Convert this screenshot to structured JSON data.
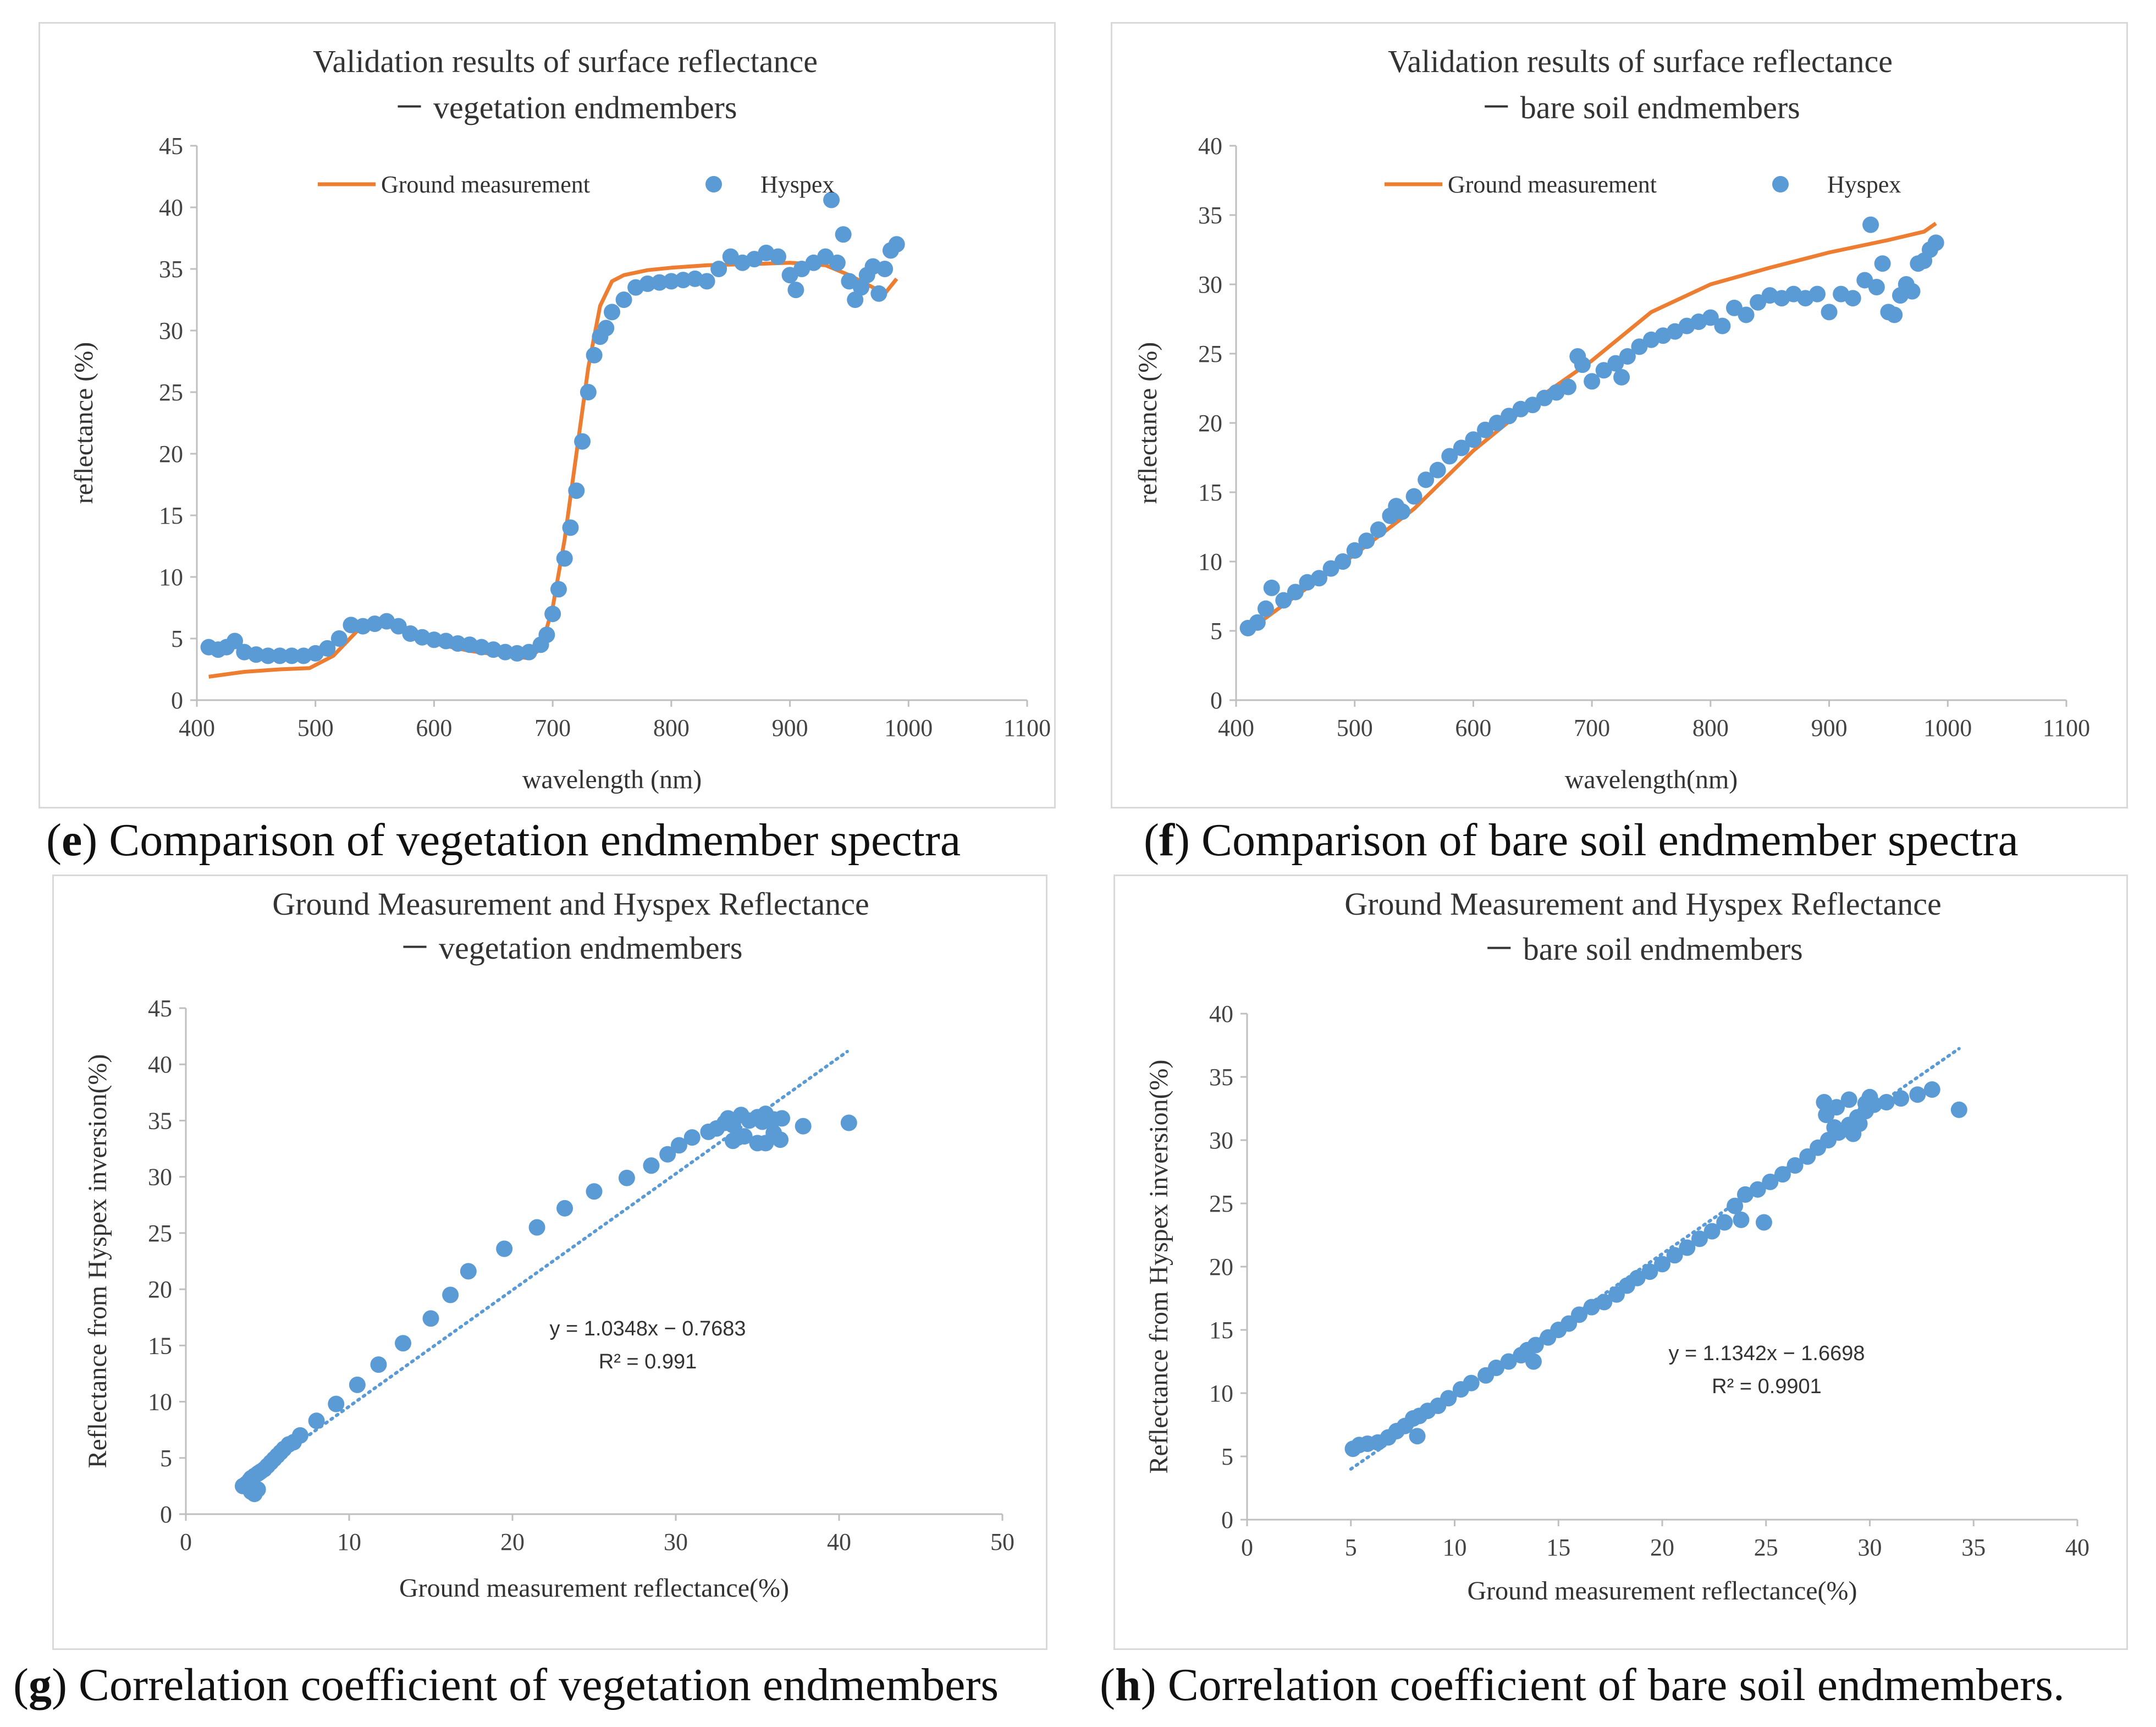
{
  "captions": {
    "e": {
      "letter": "e",
      "text": "Comparison of vegetation endmember spectra"
    },
    "f": {
      "letter": "f",
      "text": "Comparison of bare soil endmember spectra"
    },
    "g": {
      "letter": "g",
      "text": "Correlation coefficient of vegetation endmembers"
    },
    "h": {
      "letter": "h",
      "text": "Correlation coefficient of bare soil endmembers."
    }
  },
  "colors": {
    "ground": "#ed7d31",
    "hyspex": "#5b9bd5",
    "axis": "#bfbfbf"
  },
  "chart_data": [
    {
      "id": "e",
      "type": "line+scatter",
      "title": [
        "Validation results of surface reflectance",
        "－ vegetation endmembers"
      ],
      "xlabel": "wavelength (nm)",
      "ylabel": "reflectance (%)",
      "xlim": [
        400,
        1100
      ],
      "xticks": [
        400,
        500,
        600,
        700,
        800,
        900,
        1000,
        1100
      ],
      "ylim": [
        0,
        45
      ],
      "yticks": [
        0,
        5,
        10,
        15,
        20,
        25,
        30,
        35,
        40,
        45
      ],
      "legend": {
        "position": "top-center",
        "entries": [
          "Ground measurement",
          "Hyspex"
        ]
      },
      "series": [
        {
          "name": "Ground measurement",
          "kind": "line",
          "x": [
            410,
            440,
            470,
            495,
            515,
            535,
            555,
            575,
            600,
            630,
            660,
            680,
            690,
            700,
            710,
            720,
            730,
            740,
            750,
            760,
            780,
            800,
            830,
            870,
            900,
            930,
            950,
            970,
            980,
            990
          ],
          "y": [
            1.9,
            2.3,
            2.5,
            2.6,
            3.6,
            5.6,
            6.2,
            5.6,
            4.6,
            4.0,
            3.6,
            3.4,
            4.2,
            7.5,
            13.0,
            20.0,
            27.0,
            32.0,
            34.0,
            34.5,
            34.9,
            35.1,
            35.3,
            35.4,
            35.5,
            35.3,
            34.5,
            33.5,
            33.0,
            34.2
          ]
        },
        {
          "name": "Hyspex",
          "kind": "scatter",
          "x": [
            410,
            418,
            425,
            432,
            440,
            450,
            460,
            470,
            480,
            490,
            500,
            510,
            520,
            530,
            540,
            550,
            560,
            570,
            580,
            590,
            600,
            610,
            620,
            630,
            640,
            650,
            660,
            670,
            680,
            690,
            695,
            700,
            705,
            710,
            715,
            720,
            725,
            730,
            735,
            740,
            745,
            750,
            760,
            770,
            780,
            790,
            800,
            810,
            820,
            830,
            840,
            850,
            860,
            870,
            880,
            890,
            900,
            905,
            910,
            920,
            930,
            935,
            940,
            945,
            950,
            955,
            960,
            965,
            970,
            975,
            980,
            985,
            990
          ],
          "y": [
            4.3,
            4.1,
            4.3,
            4.8,
            3.9,
            3.7,
            3.6,
            3.6,
            3.6,
            3.6,
            3.8,
            4.2,
            5.0,
            6.1,
            6.0,
            6.2,
            6.4,
            6.0,
            5.4,
            5.1,
            4.9,
            4.8,
            4.6,
            4.5,
            4.3,
            4.1,
            3.9,
            3.8,
            3.9,
            4.5,
            5.3,
            7.0,
            9.0,
            11.5,
            14.0,
            17.0,
            21.0,
            25.0,
            28.0,
            29.5,
            30.2,
            31.5,
            32.5,
            33.5,
            33.8,
            33.9,
            34.0,
            34.1,
            34.2,
            34.0,
            35.0,
            36.0,
            35.5,
            35.8,
            36.3,
            36.0,
            34.5,
            33.3,
            35.0,
            35.5,
            36.0,
            40.6,
            35.5,
            37.8,
            34.0,
            32.5,
            33.5,
            34.5,
            35.2,
            33.0,
            35.0,
            36.5,
            37.0
          ]
        }
      ]
    },
    {
      "id": "f",
      "type": "line+scatter",
      "title": [
        "Validation results of surface reflectance",
        "－ bare soil endmembers"
      ],
      "xlabel": "wavelength(nm)",
      "ylabel": "reflectance (%)",
      "xlim": [
        400,
        1100
      ],
      "xticks": [
        400,
        500,
        600,
        700,
        800,
        900,
        1000,
        1100
      ],
      "ylim": [
        0,
        40
      ],
      "yticks": [
        0,
        5,
        10,
        15,
        20,
        25,
        30,
        35,
        40
      ],
      "legend": {
        "position": "top-center",
        "entries": [
          "Ground measurement",
          "Hyspex"
        ]
      },
      "series": [
        {
          "name": "Ground measurement",
          "kind": "line",
          "x": [
            410,
            450,
            500,
            550,
            600,
            650,
            700,
            750,
            800,
            850,
            900,
            950,
            980,
            990
          ],
          "y": [
            5.0,
            7.5,
            10.5,
            13.8,
            18.0,
            21.5,
            24.5,
            28.0,
            30.0,
            31.2,
            32.3,
            33.2,
            33.8,
            34.4
          ]
        },
        {
          "name": "Hyspex",
          "kind": "scatter",
          "x": [
            410,
            418,
            425,
            430,
            440,
            450,
            460,
            470,
            480,
            490,
            500,
            510,
            520,
            530,
            535,
            540,
            550,
            560,
            570,
            580,
            590,
            600,
            610,
            620,
            630,
            640,
            650,
            660,
            670,
            680,
            688,
            692,
            700,
            710,
            720,
            725,
            730,
            740,
            750,
            760,
            770,
            780,
            790,
            800,
            810,
            820,
            830,
            840,
            850,
            860,
            870,
            880,
            890,
            900,
            910,
            920,
            930,
            935,
            940,
            945,
            950,
            955,
            960,
            965,
            970,
            975,
            980,
            985,
            990
          ],
          "y": [
            5.2,
            5.6,
            6.6,
            8.1,
            7.2,
            7.8,
            8.5,
            8.8,
            9.5,
            10.0,
            10.8,
            11.5,
            12.3,
            13.3,
            14.0,
            13.6,
            14.7,
            15.9,
            16.6,
            17.6,
            18.2,
            18.8,
            19.5,
            20.0,
            20.5,
            21.0,
            21.3,
            21.8,
            22.2,
            22.6,
            24.8,
            24.2,
            23.0,
            23.8,
            24.3,
            23.3,
            24.8,
            25.5,
            26.0,
            26.3,
            26.6,
            27.0,
            27.3,
            27.6,
            27.0,
            28.3,
            27.8,
            28.7,
            29.2,
            29.0,
            29.3,
            29.0,
            29.3,
            28.0,
            29.3,
            29.0,
            30.3,
            34.3,
            29.8,
            31.5,
            28.0,
            27.8,
            29.2,
            30.0,
            29.5,
            31.5,
            31.7,
            32.5,
            33.0
          ]
        }
      ]
    },
    {
      "id": "g",
      "type": "scatter",
      "title": [
        "Ground Measurement and Hyspex Reflectance",
        "－ vegetation endmembers"
      ],
      "xlabel": "Ground measurement reflectance(%)",
      "ylabel": "Reflectance from Hyspex inversion(%)",
      "xlim": [
        0,
        50
      ],
      "xticks": [
        0,
        10,
        20,
        30,
        40,
        50
      ],
      "ylim": [
        0,
        45
      ],
      "yticks": [
        0,
        5,
        10,
        15,
        20,
        25,
        30,
        35,
        40,
        45
      ],
      "trendline": {
        "slope": 1.0348,
        "intercept": -0.7683,
        "x_range": [
          3.3,
          40.5
        ],
        "equation": "y = 1.0348x − 0.7683",
        "r2": "R² = 0.991"
      },
      "series": [
        {
          "name": "Hyspex",
          "kind": "scatter",
          "x": [
            3.5,
            3.7,
            3.9,
            4.0,
            4.2,
            4.4,
            4.5,
            4.6,
            4.8,
            5.0,
            5.2,
            5.4,
            5.6,
            5.8,
            6.0,
            6.3,
            6.6,
            7.0,
            8.0,
            9.2,
            10.5,
            11.8,
            13.3,
            15.0,
            16.2,
            17.3,
            19.5,
            21.5,
            23.2,
            25.0,
            27.0,
            28.5,
            29.5,
            30.2,
            31.0,
            32.0,
            32.5,
            33.0,
            33.2,
            33.5,
            34.0,
            34.5,
            35.0,
            35.3,
            35.5,
            36.0,
            36.5,
            37.8,
            40.6,
            4.0,
            4.2,
            4.4,
            4.3,
            33.5,
            34.2,
            35.0,
            36.0,
            33.8,
            35.5,
            36.4
          ],
          "y": [
            2.5,
            2.7,
            3.0,
            3.2,
            3.4,
            3.6,
            3.7,
            3.8,
            4.0,
            4.3,
            4.6,
            4.9,
            5.2,
            5.5,
            5.8,
            6.2,
            6.4,
            7.0,
            8.3,
            9.8,
            11.5,
            13.3,
            15.2,
            17.4,
            19.5,
            21.6,
            23.6,
            25.5,
            27.2,
            28.7,
            29.9,
            31.0,
            32.0,
            32.8,
            33.5,
            34.0,
            34.3,
            34.8,
            35.2,
            34.6,
            35.5,
            35.0,
            35.3,
            34.9,
            35.6,
            35.1,
            35.2,
            34.5,
            34.8,
            2.0,
            1.8,
            2.2,
            2.1,
            33.2,
            33.6,
            33.0,
            33.9,
            33.5,
            33.0,
            33.3
          ]
        }
      ]
    },
    {
      "id": "h",
      "type": "scatter",
      "title": [
        "Ground Measurement and Hyspex Reflectance",
        "－ bare soil endmembers"
      ],
      "xlabel": "Ground measurement reflectance(%)",
      "ylabel": "Reflectance from Hyspex inversion(%)",
      "xlim": [
        0,
        40
      ],
      "xticks": [
        0,
        5,
        10,
        15,
        20,
        25,
        30,
        35,
        40
      ],
      "ylim": [
        0,
        40
      ],
      "yticks": [
        0,
        5,
        10,
        15,
        20,
        25,
        30,
        35,
        40
      ],
      "trendline": {
        "slope": 1.1342,
        "intercept": -1.6698,
        "x_range": [
          5.0,
          34.3
        ],
        "equation": "y = 1.1342x − 1.6698",
        "r2": "R² = 0.9901"
      },
      "series": [
        {
          "name": "Hyspex",
          "kind": "scatter",
          "x": [
            5.1,
            5.4,
            5.8,
            6.3,
            6.8,
            7.2,
            7.6,
            8.0,
            8.3,
            8.7,
            9.2,
            9.7,
            10.3,
            10.8,
            11.5,
            12.0,
            12.6,
            13.2,
            13.5,
            13.9,
            14.5,
            15.0,
            15.5,
            16.0,
            16.6,
            17.2,
            17.8,
            18.3,
            18.8,
            19.4,
            20.0,
            20.6,
            21.2,
            21.8,
            22.4,
            23.0,
            23.5,
            24.0,
            24.6,
            25.2,
            25.8,
            26.4,
            27.0,
            27.5,
            28.0,
            28.5,
            29.0,
            29.4,
            29.8,
            30.2,
            30.8,
            31.5,
            32.3,
            33.0,
            34.3,
            8.2,
            13.8,
            23.8,
            24.9,
            27.8,
            28.4,
            29.0,
            29.5,
            30.0,
            28.3,
            29.2,
            29.8,
            27.9
          ],
          "y": [
            5.6,
            5.9,
            6.0,
            6.1,
            6.5,
            7.0,
            7.4,
            8.0,
            8.2,
            8.6,
            9.0,
            9.6,
            10.3,
            10.8,
            11.4,
            12.0,
            12.5,
            13.0,
            13.4,
            13.8,
            14.4,
            15.0,
            15.5,
            16.2,
            16.8,
            17.2,
            17.8,
            18.5,
            19.1,
            19.6,
            20.2,
            20.9,
            21.5,
            22.2,
            22.8,
            23.5,
            24.8,
            25.7,
            26.1,
            26.7,
            27.3,
            28.0,
            28.7,
            29.4,
            30.0,
            30.6,
            31.2,
            31.8,
            32.3,
            32.8,
            33.0,
            33.3,
            33.6,
            34.0,
            32.4,
            6.6,
            12.5,
            23.7,
            23.5,
            33.0,
            32.6,
            33.2,
            31.3,
            33.4,
            31.0,
            30.5,
            32.9,
            32.0
          ]
        }
      ]
    }
  ]
}
